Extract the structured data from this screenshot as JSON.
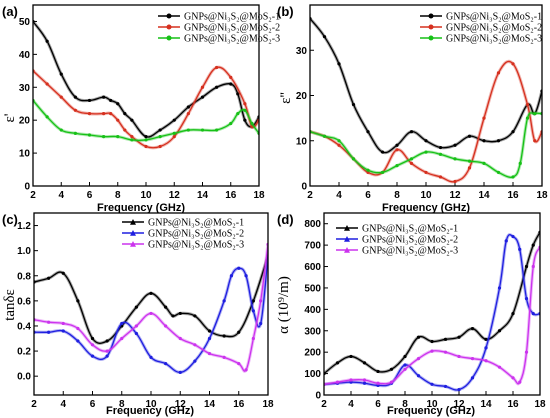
{
  "chart_data": [
    {
      "panel": "(a)",
      "type": "line",
      "ylabel": "ε'",
      "xlabel": "Frequency (GHz)",
      "xlim": [
        2,
        18
      ],
      "ylim": [
        0,
        55
      ],
      "xticks": [
        2,
        4,
        6,
        8,
        10,
        12,
        14,
        16,
        18
      ],
      "yticks": [
        0,
        10,
        20,
        30,
        40,
        50
      ],
      "legend_position": "top-right",
      "series": [
        {
          "name": "GNPs@Ni₃S₂@MoS₂-1",
          "color": "#000000",
          "x": [
            2,
            3,
            4,
            5,
            6,
            7,
            7.5,
            8,
            8.5,
            9,
            10,
            11,
            12,
            13,
            14,
            15,
            16,
            16.5,
            17,
            17.5,
            18
          ],
          "y": [
            50,
            44,
            34,
            27,
            26,
            27,
            26,
            25,
            22,
            20,
            15,
            17,
            20,
            24,
            27,
            30,
            31,
            28,
            20,
            18,
            21
          ]
        },
        {
          "name": "GNPs@Ni₃S₂@MoS₂-2",
          "color": "#d6301f",
          "x": [
            2,
            3,
            4,
            5,
            6,
            7,
            7.5,
            8,
            8.5,
            9,
            10,
            11,
            12,
            13,
            14,
            15,
            16,
            17,
            17.5,
            18
          ],
          "y": [
            35,
            31,
            27,
            23,
            22,
            22,
            22,
            20,
            17,
            15,
            12,
            12,
            15,
            22,
            30,
            36,
            33,
            25,
            18,
            20
          ]
        },
        {
          "name": "GNPs@Ni₃S₂@MoS₂-3",
          "color": "#17c117",
          "x": [
            2,
            3,
            4,
            5,
            6,
            7,
            8,
            9,
            10,
            11,
            12,
            13,
            14,
            15,
            16,
            16.5,
            17,
            17.5,
            18
          ],
          "y": [
            26,
            21,
            17,
            16,
            15.5,
            15,
            15,
            14,
            14,
            15,
            16,
            17,
            17,
            17,
            19,
            22,
            23,
            19,
            16
          ]
        }
      ]
    },
    {
      "panel": "(b)",
      "type": "line",
      "ylabel": "ε''",
      "xlabel": "Frequency (GHz)",
      "xlim": [
        2,
        18
      ],
      "ylim": [
        0,
        40
      ],
      "xticks": [
        2,
        4,
        6,
        8,
        10,
        12,
        14,
        16,
        18
      ],
      "yticks": [
        0,
        10,
        20,
        30
      ],
      "legend_position": "top-right",
      "series": [
        {
          "name": "GNPs@Ni₃S₂@MoS₂-1",
          "color": "#000000",
          "x": [
            2,
            3,
            4,
            5,
            6,
            7,
            8,
            9,
            10,
            11,
            12,
            13,
            14,
            15,
            16,
            17,
            17.5,
            18
          ],
          "y": [
            37,
            33,
            27,
            18,
            12,
            7.5,
            9,
            12,
            10,
            8.5,
            9,
            11,
            10,
            10,
            12,
            18,
            16,
            21
          ]
        },
        {
          "name": "GNPs@Ni₃S₂@MoS₂-2",
          "color": "#d6301f",
          "x": [
            2,
            3,
            4,
            5,
            6,
            7,
            8,
            9,
            10,
            11,
            12,
            13,
            14,
            15,
            16,
            17,
            17.5,
            18
          ],
          "y": [
            12,
            11,
            9,
            6,
            3,
            3,
            8,
            5,
            3,
            2,
            1,
            4,
            15,
            25,
            27,
            18,
            10,
            12
          ]
        },
        {
          "name": "GNPs@Ni₃S₂@MoS₂-3",
          "color": "#17c117",
          "x": [
            2,
            3,
            4,
            5,
            6,
            7,
            8,
            9,
            10,
            11,
            12,
            13,
            14,
            15,
            16,
            16.5,
            17,
            17.5,
            18
          ],
          "y": [
            12,
            11,
            10,
            6,
            3.5,
            3,
            4.5,
            6,
            7.5,
            7,
            6,
            5.5,
            5,
            3,
            2,
            5,
            15,
            16,
            16
          ]
        }
      ]
    },
    {
      "panel": "(c)",
      "type": "line",
      "ylabel": "tanδε",
      "xlabel": "Frequency (GHz)",
      "xlim": [
        2,
        18
      ],
      "ylim": [
        -0.15,
        1.3
      ],
      "xticks": [
        2,
        4,
        6,
        8,
        10,
        12,
        14,
        16,
        18
      ],
      "yticks": [
        0.0,
        0.2,
        0.4,
        0.6,
        0.8,
        1.0,
        1.2
      ],
      "legend_position": "top-right",
      "series": [
        {
          "name": "GNPs@Ni₃S₂@MoS₂-1",
          "color": "#000000",
          "x": [
            2,
            3,
            4,
            5,
            6,
            7,
            8,
            9,
            10,
            11,
            11.5,
            12,
            13,
            14,
            15,
            16,
            17,
            18
          ],
          "y": [
            0.75,
            0.78,
            0.82,
            0.6,
            0.3,
            0.28,
            0.4,
            0.55,
            0.66,
            0.55,
            0.48,
            0.5,
            0.48,
            0.36,
            0.32,
            0.35,
            0.6,
            0.96
          ]
        },
        {
          "name": "GNPs@Ni₃S₂@MoS₂-2",
          "color": "#1f1fe0",
          "x": [
            2,
            3,
            4,
            5,
            6,
            7,
            8,
            9,
            10,
            11,
            12,
            13,
            14,
            15,
            15.5,
            16,
            16.5,
            17,
            17.5,
            18
          ],
          "y": [
            0.35,
            0.35,
            0.36,
            0.28,
            0.16,
            0.16,
            0.42,
            0.34,
            0.15,
            0.1,
            0.03,
            0.12,
            0.3,
            0.6,
            0.8,
            0.86,
            0.8,
            0.52,
            0.42,
            0.96
          ]
        },
        {
          "name": "GNPs@Ni₃S₂@MoS₂-3",
          "color": "#cc33ee",
          "x": [
            2,
            3,
            4,
            5,
            6,
            7,
            8,
            9,
            10,
            11,
            12,
            13,
            14,
            15,
            16,
            16.5,
            17,
            17.5,
            18
          ],
          "y": [
            0.45,
            0.43,
            0.42,
            0.38,
            0.25,
            0.2,
            0.3,
            0.4,
            0.5,
            0.4,
            0.3,
            0.25,
            0.18,
            0.15,
            0.1,
            0.05,
            0.3,
            0.6,
            1.05
          ]
        }
      ]
    },
    {
      "panel": "(d)",
      "type": "line",
      "ylabel": "α (10⁹/m)",
      "xlabel": "Frequency (GHz)",
      "xlim": [
        2,
        18
      ],
      "ylim": [
        0,
        850
      ],
      "xticks": [
        2,
        4,
        6,
        8,
        10,
        12,
        14,
        16,
        18
      ],
      "yticks": [
        0,
        100,
        200,
        300,
        400,
        500,
        600,
        700,
        800
      ],
      "legend_position": "top-left",
      "series": [
        {
          "name": "GNPs@Ni₃S₂@MoS₂-1",
          "color": "#000000",
          "x": [
            2,
            3,
            4,
            5,
            6,
            7,
            8,
            9,
            10,
            11,
            12,
            13,
            14,
            15,
            16,
            17,
            17.5,
            18
          ],
          "y": [
            100,
            150,
            180,
            150,
            110,
            120,
            180,
            270,
            250,
            260,
            270,
            310,
            260,
            300,
            380,
            600,
            700,
            760
          ]
        },
        {
          "name": "GNPs@Ni₃S₂@MoS₂-2",
          "color": "#1f1fe0",
          "x": [
            2,
            3,
            4,
            5,
            6,
            7,
            8,
            9,
            10,
            11,
            12,
            13,
            14,
            15,
            15.5,
            16,
            16.5,
            17,
            17.5,
            18
          ],
          "y": [
            50,
            55,
            60,
            55,
            45,
            55,
            140,
            90,
            50,
            40,
            25,
            80,
            220,
            500,
            720,
            740,
            680,
            450,
            380,
            380
          ]
        },
        {
          "name": "GNPs@Ni₃S₂@MoS₂-3",
          "color": "#cc33ee",
          "x": [
            2,
            3,
            4,
            5,
            6,
            7,
            8,
            9,
            10,
            11,
            12,
            13,
            14,
            15,
            16,
            16.5,
            17,
            17.5,
            18
          ],
          "y": [
            50,
            60,
            70,
            70,
            55,
            60,
            120,
            170,
            205,
            200,
            180,
            170,
            160,
            130,
            80,
            60,
            200,
            600,
            690
          ]
        }
      ]
    }
  ]
}
